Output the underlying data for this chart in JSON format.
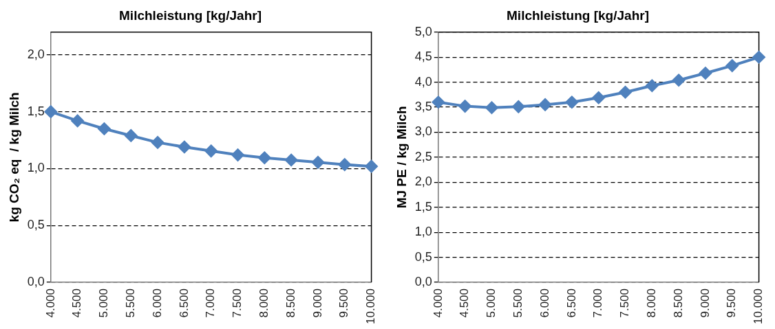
{
  "chart_data": [
    {
      "type": "line",
      "title": "Milchleistung [kg/Jahr]",
      "ylabel": "kg CO₂ eq  / kg Milch",
      "categories": [
        "4.000",
        "4.500",
        "5.000",
        "5.500",
        "6.000",
        "6.500",
        "7.000",
        "7.500",
        "8.000",
        "8.500",
        "9.000",
        "9.500",
        "10.000"
      ],
      "series": [
        {
          "color": "#4f81bd",
          "values": [
            1.5,
            1.42,
            1.35,
            1.29,
            1.23,
            1.19,
            1.155,
            1.12,
            1.095,
            1.075,
            1.055,
            1.035,
            1.02
          ]
        }
      ],
      "ylim": [
        0,
        2.2
      ],
      "yticks": [
        {
          "value": 0,
          "label": "0,0"
        },
        {
          "value": 0.5,
          "label": "0,5"
        },
        {
          "value": 1,
          "label": "1,0"
        },
        {
          "value": 1.5,
          "label": "1,5"
        },
        {
          "value": 2,
          "label": "2,0"
        }
      ],
      "grid": "y",
      "marker": "diamond",
      "line_style": "solid"
    },
    {
      "type": "line",
      "title": "Milchleistung [kg/Jahr]",
      "ylabel": "MJ PE / kg Milch",
      "categories": [
        "4.000",
        "4.500",
        "5.000",
        "5.500",
        "6.000",
        "6.500",
        "7.000",
        "7.500",
        "8.000",
        "8.500",
        "9.000",
        "9.500",
        "10.000"
      ],
      "series": [
        {
          "color": "#4f81bd",
          "values": [
            3.6,
            3.52,
            3.49,
            3.51,
            3.55,
            3.6,
            3.69,
            3.8,
            3.93,
            4.04,
            4.18,
            4.33,
            4.5
          ]
        }
      ],
      "ylim": [
        0,
        5
      ],
      "yticks": [
        {
          "value": 0,
          "label": "0,0"
        },
        {
          "value": 0.5,
          "label": "0,5"
        },
        {
          "value": 1,
          "label": "1,0"
        },
        {
          "value": 1.5,
          "label": "1,5"
        },
        {
          "value": 2,
          "label": "2,0"
        },
        {
          "value": 2.5,
          "label": "2,5"
        },
        {
          "value": 3,
          "label": "3,0"
        },
        {
          "value": 3.5,
          "label": "3,5"
        },
        {
          "value": 4,
          "label": "4,0"
        },
        {
          "value": 4.5,
          "label": "4,5"
        },
        {
          "value": 5,
          "label": "5,0"
        }
      ],
      "grid": "y",
      "marker": "diamond",
      "line_style": "solid"
    }
  ]
}
